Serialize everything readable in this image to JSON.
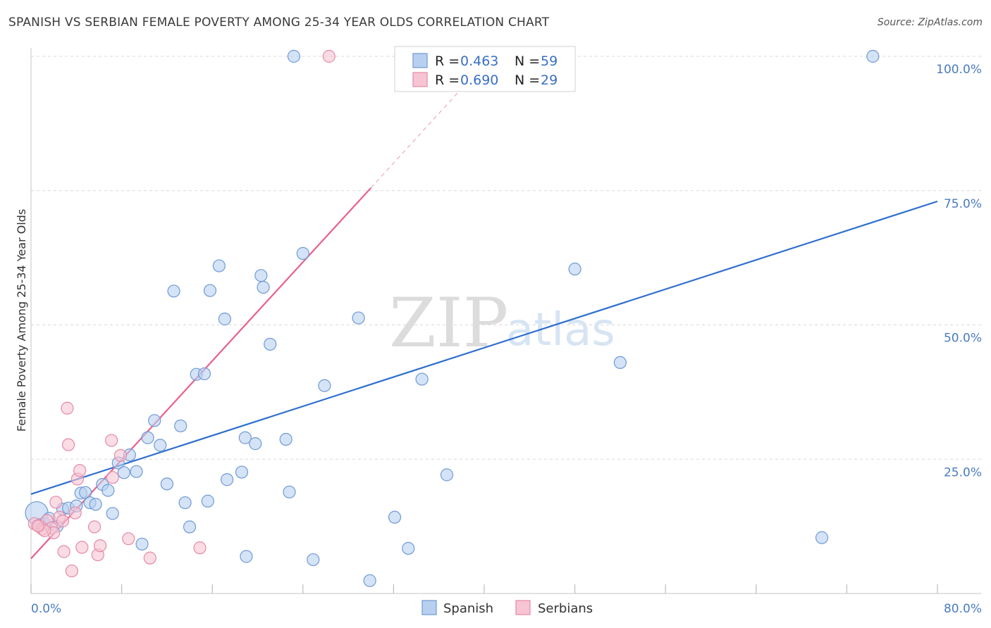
{
  "header": {
    "title": "SPANISH VS SERBIAN FEMALE POVERTY AMONG 25-34 YEAR OLDS CORRELATION CHART",
    "source": "Source: ZipAtlas.com"
  },
  "watermark": {
    "zip": "ZIP",
    "atlas": "atlas"
  },
  "legend": {
    "rows": [
      {
        "r_label": "R =",
        "r_value": "0.463",
        "n_label": "N =",
        "n_value": "59"
      },
      {
        "r_label": "R =",
        "r_value": "0.690",
        "n_label": "N =",
        "n_value": "29"
      }
    ]
  },
  "bottom_legend": {
    "spanish": "Spanish",
    "serbians": "Serbians"
  },
  "colors": {
    "spanish_fill": "#b8d0f0",
    "spanish_stroke": "#6f9ad6",
    "spanish_line": "#2f6fcf",
    "serbian_fill": "#f7c4d3",
    "serbian_stroke": "#e58aa6",
    "serbian_line": "#e8608a",
    "tick": "#4a7cc0",
    "grid": "#d8d8d8"
  },
  "chart_data": {
    "type": "scatter",
    "title": "SPANISH VS SERBIAN FEMALE POVERTY AMONG 25-34 YEAR OLDS CORRELATION CHART",
    "xlabel": "",
    "ylabel": "Female Poverty Among 25-34 Year Olds",
    "xlim": [
      0,
      80
    ],
    "ylim": [
      0,
      100
    ],
    "x_tick_labels": [
      "0.0%",
      "80.0%"
    ],
    "y_tick_labels": [
      {
        "value": 25,
        "label": "25.0%"
      },
      {
        "value": 50,
        "label": "50.0%"
      },
      {
        "value": 75,
        "label": "75.0%"
      },
      {
        "value": 100,
        "label": "100.0%"
      }
    ],
    "grid": true,
    "legend_position": "top-center",
    "series": [
      {
        "name": "Spanish",
        "R": 0.463,
        "N": 59,
        "trend": {
          "x0": 0,
          "y0": 18.5,
          "x1": 80,
          "y1": 73
        },
        "points": [
          [
            0.5,
            15.0
          ],
          [
            0.8,
            12.8
          ],
          [
            1.2,
            13.0
          ],
          [
            1.6,
            14.0
          ],
          [
            2.3,
            12.5
          ],
          [
            2.8,
            15.7
          ],
          [
            3.3,
            15.9
          ],
          [
            4.0,
            16.3
          ],
          [
            4.4,
            18.7
          ],
          [
            4.8,
            18.8
          ],
          [
            5.2,
            16.9
          ],
          [
            5.7,
            16.6
          ],
          [
            6.3,
            20.3
          ],
          [
            6.8,
            19.2
          ],
          [
            7.2,
            14.9
          ],
          [
            7.7,
            24.3
          ],
          [
            8.2,
            22.5
          ],
          [
            8.7,
            25.8
          ],
          [
            9.3,
            22.7
          ],
          [
            9.8,
            9.2
          ],
          [
            10.3,
            29.0
          ],
          [
            10.9,
            32.2
          ],
          [
            11.4,
            27.6
          ],
          [
            12.0,
            20.4
          ],
          [
            12.6,
            56.3
          ],
          [
            13.2,
            31.2
          ],
          [
            13.6,
            16.9
          ],
          [
            14.0,
            12.4
          ],
          [
            14.6,
            40.8
          ],
          [
            15.3,
            40.9
          ],
          [
            15.6,
            17.2
          ],
          [
            15.8,
            56.4
          ],
          [
            16.6,
            61.0
          ],
          [
            17.1,
            51.1
          ],
          [
            17.3,
            21.2
          ],
          [
            18.6,
            22.6
          ],
          [
            18.9,
            29.0
          ],
          [
            19.0,
            6.9
          ],
          [
            19.8,
            27.9
          ],
          [
            20.3,
            59.2
          ],
          [
            20.5,
            57.0
          ],
          [
            21.1,
            46.4
          ],
          [
            22.5,
            28.7
          ],
          [
            22.8,
            18.9
          ],
          [
            23.2,
            100.0
          ],
          [
            24.0,
            63.3
          ],
          [
            24.9,
            6.3
          ],
          [
            25.9,
            38.7
          ],
          [
            28.9,
            51.3
          ],
          [
            29.9,
            2.4
          ],
          [
            32.1,
            14.2
          ],
          [
            33.3,
            8.4
          ],
          [
            34.5,
            39.9
          ],
          [
            36.7,
            22.1
          ],
          [
            46.9,
            100.0
          ],
          [
            48.0,
            60.4
          ],
          [
            52.0,
            43.0
          ],
          [
            69.8,
            10.4
          ],
          [
            74.3,
            100.0
          ]
        ]
      },
      {
        "name": "Serbians",
        "R": 0.69,
        "N": 29,
        "trend": {
          "x0": 0,
          "y0": 6.5,
          "x1": 30,
          "y1": 75.5,
          "dash_to": {
            "x": 38,
            "y": 94
          }
        },
        "points": [
          [
            0.3,
            13.0
          ],
          [
            0.7,
            12.5
          ],
          [
            1.0,
            12.0
          ],
          [
            1.4,
            13.6
          ],
          [
            1.8,
            12.2
          ],
          [
            2.0,
            11.3
          ],
          [
            2.2,
            17.0
          ],
          [
            2.5,
            14.2
          ],
          [
            2.8,
            13.5
          ],
          [
            2.9,
            7.8
          ],
          [
            3.2,
            34.5
          ],
          [
            3.3,
            27.7
          ],
          [
            3.6,
            4.2
          ],
          [
            3.9,
            15.0
          ],
          [
            4.1,
            21.3
          ],
          [
            4.3,
            22.9
          ],
          [
            4.5,
            8.6
          ],
          [
            5.6,
            12.4
          ],
          [
            5.9,
            7.2
          ],
          [
            6.1,
            8.9
          ],
          [
            7.1,
            28.5
          ],
          [
            7.2,
            21.6
          ],
          [
            7.9,
            25.7
          ],
          [
            8.6,
            10.2
          ],
          [
            10.5,
            6.6
          ],
          [
            14.9,
            8.5
          ],
          [
            26.3,
            100.0
          ],
          [
            1.2,
            11.7
          ],
          [
            0.6,
            12.6
          ]
        ]
      }
    ]
  }
}
